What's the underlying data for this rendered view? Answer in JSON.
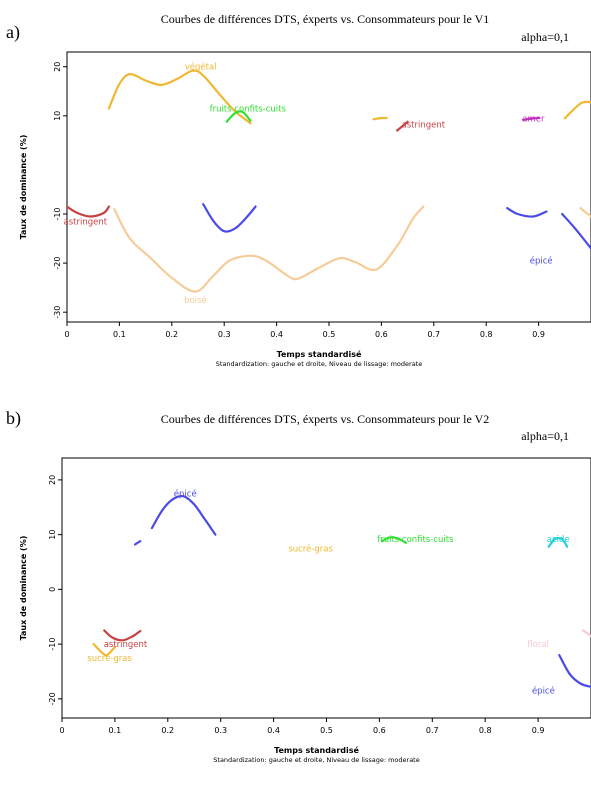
{
  "chart_data": [
    {
      "type": "line",
      "panel": "a)",
      "title": "Courbes de différences DTS, éxperts vs. Consommateurs pour le V1",
      "subtitle": "alpha=0,1",
      "xlabel": "Temps standardisé",
      "ylabel": "Taux de dominance (%)",
      "caption": "Standardization: gauche et droite, Niveau de lissage: moderate",
      "xlim": [
        0,
        1
      ],
      "ylim": [
        -32,
        23
      ],
      "xticks": [
        "0",
        "0.1",
        "0.2",
        "0.3",
        "0.4",
        "0.5",
        "0.6",
        "0.7",
        "0.8",
        "0.9"
      ],
      "yticks": [
        {
          "value": 20,
          "label": "20"
        },
        {
          "value": 10,
          "label": "10"
        },
        {
          "value": -10,
          "label": "-10"
        },
        {
          "value": -20,
          "label": "-20"
        },
        {
          "value": -30,
          "label": "-30"
        }
      ],
      "series": [
        {
          "name": "végétal",
          "color": "#f0b830",
          "label_at": [
            0.255,
            20
          ],
          "segments": [
            [
              [
                0.08,
                11.5
              ],
              [
                0.1,
                16.5
              ],
              [
                0.12,
                18.5
              ],
              [
                0.15,
                17.2
              ],
              [
                0.18,
                16.3
              ],
              [
                0.21,
                17.5
              ],
              [
                0.24,
                19.2
              ],
              [
                0.26,
                18.2
              ],
              [
                0.29,
                14.5
              ],
              [
                0.32,
                11
              ],
              [
                0.35,
                8.5
              ]
            ]
          ]
        },
        {
          "name": "fruits confits-cuits",
          "color": "#30e030",
          "label_at": [
            0.345,
            11.5
          ],
          "segments": [
            [
              [
                0.305,
                8.8
              ],
              [
                0.32,
                10.5
              ],
              [
                0.335,
                10.8
              ],
              [
                0.35,
                9
              ]
            ]
          ]
        },
        {
          "name": "astringent",
          "color": "#c84040",
          "label_at": [
            0.035,
            -11.5
          ],
          "segments": [
            [
              [
                0.0,
                -8.5
              ],
              [
                0.02,
                -9.8
              ],
              [
                0.045,
                -10.5
              ],
              [
                0.07,
                -9.8
              ],
              [
                0.08,
                -8.5
              ]
            ],
            [
              [
                0.63,
                7
              ],
              [
                0.65,
                8.8
              ]
            ]
          ]
        },
        {
          "name": "astringent",
          "color": "#c84040",
          "label_at": [
            0.68,
            8.2
          ],
          "segments": []
        },
        {
          "name": "amer",
          "color": "#c030c0",
          "label_at": [
            0.89,
            9.5
          ],
          "segments": [
            [
              [
                0.87,
                9.2
              ],
              [
                0.9,
                9.6
              ]
            ]
          ]
        },
        {
          "name": "",
          "color": "#f0b830",
          "segments": [
            [
              [
                0.585,
                9.3
              ],
              [
                0.6,
                9.6
              ]
            ],
            [
              [
                0.6,
                9.5
              ],
              [
                0.61,
                9.6
              ]
            ],
            [
              [
                0.95,
                9.5
              ],
              [
                0.98,
                12.5
              ],
              [
                1.0,
                12.8
              ]
            ]
          ]
        },
        {
          "name": "boisé",
          "color": "#f6cc98",
          "label_at": [
            0.245,
            -27.5
          ],
          "segments": [
            [
              [
                0.09,
                -9
              ],
              [
                0.12,
                -15
              ],
              [
                0.16,
                -19
              ],
              [
                0.2,
                -23
              ],
              [
                0.245,
                -25.8
              ],
              [
                0.28,
                -22.5
              ],
              [
                0.31,
                -19.5
              ],
              [
                0.35,
                -18.5
              ],
              [
                0.38,
                -19.5
              ],
              [
                0.42,
                -22.5
              ],
              [
                0.44,
                -23.2
              ],
              [
                0.48,
                -21
              ],
              [
                0.52,
                -19
              ],
              [
                0.55,
                -19.8
              ],
              [
                0.59,
                -21.3
              ],
              [
                0.63,
                -16.5
              ],
              [
                0.66,
                -11
              ],
              [
                0.68,
                -8.5
              ]
            ],
            [
              [
                0.98,
                -8.8
              ],
              [
                1.0,
                -10.5
              ]
            ]
          ]
        },
        {
          "name": "épicé",
          "color": "#4a4ae8",
          "label_at": [
            0.905,
            -19.5
          ],
          "segments": [
            [
              [
                0.26,
                -8
              ],
              [
                0.28,
                -11.5
              ],
              [
                0.3,
                -13.5
              ],
              [
                0.32,
                -13
              ],
              [
                0.34,
                -11
              ],
              [
                0.36,
                -8.5
              ]
            ],
            [
              [
                0.84,
                -8.8
              ],
              [
                0.86,
                -10
              ],
              [
                0.89,
                -10.5
              ],
              [
                0.915,
                -9.5
              ]
            ],
            [
              [
                0.945,
                -10
              ],
              [
                0.97,
                -13
              ],
              [
                1.0,
                -17
              ]
            ]
          ]
        }
      ]
    },
    {
      "type": "line",
      "panel": "b)",
      "title": "Courbes de différences DTS, éxperts vs. Consommateurs pour le V2",
      "subtitle": "alpha=0,1",
      "xlabel": "Temps standardisé",
      "ylabel": "Taux de dominance (%)",
      "caption": "Standardization: gauche et droite, Niveau de lissage: moderate",
      "xlim": [
        0,
        1
      ],
      "ylim": [
        -23.5,
        24
      ],
      "xticks": [
        "0",
        "0.1",
        "0.2",
        "0.3",
        "0.4",
        "0.5",
        "0.6",
        "0.7",
        "0.8",
        "0.9"
      ],
      "yticks": [
        {
          "value": 20,
          "label": "20"
        },
        {
          "value": 10,
          "label": "10"
        },
        {
          "value": 0,
          "label": "0"
        },
        {
          "value": -10,
          "label": "-10"
        },
        {
          "value": -20,
          "label": "-20"
        }
      ],
      "series": [
        {
          "name": "épicé",
          "color": "#4a4ae8",
          "label_at": [
            0.233,
            17.5
          ],
          "segments": [
            [
              [
                0.17,
                11.2
              ],
              [
                0.19,
                14.5
              ],
              [
                0.21,
                16.5
              ],
              [
                0.23,
                17
              ],
              [
                0.25,
                15.5
              ],
              [
                0.27,
                12.8
              ],
              [
                0.29,
                10
              ]
            ],
            [
              [
                0.138,
                8.2
              ],
              [
                0.148,
                8.8
              ]
            ],
            [
              [
                0.94,
                -12
              ],
              [
                0.96,
                -15.5
              ],
              [
                0.98,
                -17.2
              ],
              [
                1.0,
                -17.8
              ]
            ]
          ]
        },
        {
          "name": "sucré-gras",
          "color": "#f0b830",
          "label_at": [
            0.47,
            7.5
          ],
          "segments": [
            [
              [
                0.06,
                -10
              ],
              [
                0.075,
                -11.5
              ],
              [
                0.085,
                -12
              ],
              [
                0.1,
                -10.5
              ]
            ]
          ]
        },
        {
          "name": "fruits confits-cuits",
          "color": "#30e030",
          "label_at": [
            0.668,
            9.2
          ],
          "segments": [
            [
              [
                0.605,
                8.8
              ],
              [
                0.62,
                9.5
              ],
              [
                0.635,
                9.3
              ],
              [
                0.65,
                8.5
              ]
            ]
          ]
        },
        {
          "name": "acide",
          "color": "#20d0d8",
          "label_at": [
            0.938,
            9.2
          ],
          "segments": [
            [
              [
                0.92,
                7.8
              ],
              [
                0.932,
                9.2
              ],
              [
                0.945,
                9.2
              ],
              [
                0.955,
                7.8
              ]
            ]
          ]
        },
        {
          "name": "astringent",
          "color": "#c84040",
          "label_at": [
            0.12,
            -10
          ],
          "segments": [
            [
              [
                0.08,
                -7.5
              ],
              [
                0.095,
                -8.8
              ],
              [
                0.115,
                -9.3
              ],
              [
                0.135,
                -8.5
              ],
              [
                0.148,
                -7.6
              ]
            ]
          ]
        },
        {
          "name": "sucré-gras",
          "color": "#f0b830",
          "label_at": [
            0.09,
            -12.5
          ],
          "segments": []
        },
        {
          "name": "floral",
          "color": "#f8c8d0",
          "label_at": [
            0.9,
            -10
          ],
          "segments": [
            [
              [
                0.985,
                -7.5
              ],
              [
                1.0,
                -8.5
              ]
            ]
          ]
        },
        {
          "name": "épicé",
          "color": "#4a4ae8",
          "label_at": [
            0.91,
            -18.5
          ],
          "segments": []
        }
      ]
    }
  ]
}
